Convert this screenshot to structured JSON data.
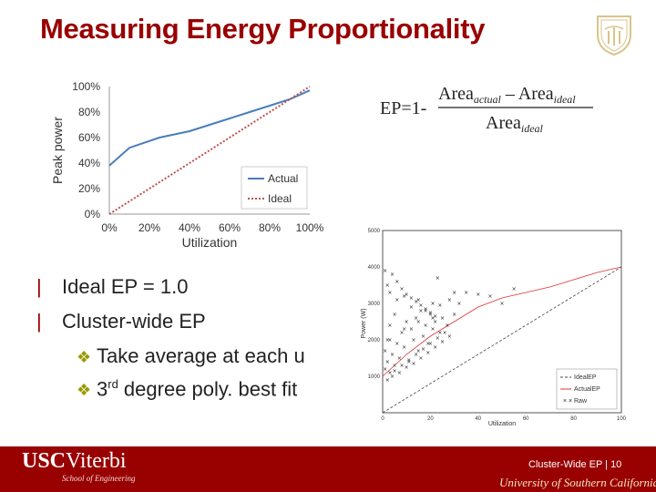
{
  "slide": {
    "title": "Measuring Energy Proportionality",
    "bullets": [
      {
        "marker": "|",
        "text": "Ideal EP = 1.0"
      },
      {
        "marker": "|",
        "text": "Cluster-wide EP"
      }
    ],
    "subbullets": [
      {
        "text": "Take average at each u"
      },
      {
        "pre": "3",
        "sup": "rd",
        "post": " degree poly. best fit"
      }
    ]
  },
  "formula": {
    "lhs": "EP=1-",
    "num_a": "Area",
    "num_a_sub": "actual",
    "minus": " – ",
    "num_b": "Area",
    "num_b_sub": "ideal",
    "den": "Area",
    "den_sub": "ideal"
  },
  "footer": {
    "logo_usc": "USC",
    "logo_viterbi": "Viterbi",
    "logo_sub": "School of Engineering",
    "slide_label": "Cluster-Wide EP | 10",
    "university": "University of Southern California"
  },
  "chart_data": [
    {
      "type": "line",
      "xlabel": "Utilization",
      "ylabel": "Peak power",
      "x_ticks": [
        "0%",
        "20%",
        "40%",
        "60%",
        "80%",
        "100%"
      ],
      "y_ticks": [
        "0%",
        "20%",
        "40%",
        "60%",
        "80%",
        "100%"
      ],
      "xlim": [
        0,
        100
      ],
      "ylim": [
        0,
        100
      ],
      "legend_position": "bottom-right",
      "series": [
        {
          "name": "Actual",
          "color": "#4a7ebb",
          "x": [
            0,
            10,
            25,
            40,
            50,
            60,
            70,
            80,
            90,
            100
          ],
          "y": [
            38,
            52,
            60,
            65,
            70,
            75,
            80,
            85,
            90,
            97
          ]
        },
        {
          "name": "Ideal",
          "color": "#c0504d",
          "style": "dotted",
          "x": [
            0,
            100
          ],
          "y": [
            0,
            100
          ]
        }
      ]
    },
    {
      "type": "scatter",
      "xlabel": "Utilization",
      "ylabel": "Power (W)",
      "x_ticks": [
        "0",
        "20",
        "40",
        "60",
        "80",
        "100"
      ],
      "y_ticks": [
        "1000",
        "2000",
        "3000",
        "4000",
        "5000"
      ],
      "xlim": [
        0,
        100
      ],
      "ylim": [
        0,
        5000
      ],
      "legend_position": "bottom-right",
      "series": [
        {
          "name": "IdealEP",
          "color": "#444444",
          "style": "dashed",
          "x": [
            0,
            100
          ],
          "y": [
            0,
            4000
          ]
        },
        {
          "name": "ActualEP",
          "color": "#dd3333",
          "x": [
            0,
            10,
            20,
            30,
            40,
            50,
            60,
            70,
            80,
            90,
            100
          ],
          "y": [
            1000,
            1600,
            2100,
            2500,
            2900,
            3150,
            3300,
            3450,
            3650,
            3850,
            4000
          ]
        },
        {
          "name": "Raw",
          "color": "#222222",
          "marker": "x",
          "x": [
            1,
            1,
            2,
            2,
            3,
            3,
            4,
            5,
            5,
            6,
            7,
            8,
            9,
            10,
            11,
            12,
            13,
            14,
            15,
            16,
            17,
            18,
            19,
            20,
            21,
            22,
            24,
            25,
            27,
            30,
            32,
            3,
            6,
            9,
            12,
            15,
            18,
            21,
            24,
            2,
            4,
            7,
            10,
            13,
            16,
            19,
            22,
            25,
            28,
            5,
            8,
            11,
            14,
            17,
            20,
            23,
            26,
            3,
            9,
            15,
            21,
            1,
            2,
            4,
            6,
            8,
            10,
            12,
            14,
            16,
            18,
            20,
            22,
            30,
            35,
            40,
            45,
            55,
            23,
            28,
            50
          ],
          "y": [
            1200,
            1700,
            1400,
            2000,
            1100,
            2400,
            1600,
            1300,
            2700,
            1900,
            1500,
            2200,
            1800,
            2500,
            1400,
            2300,
            2000,
            2600,
            1700,
            2800,
            2100,
            2400,
            1900,
            2700,
            2300,
            2500,
            2200,
            2600,
            2400,
            2700,
            3000,
            3300,
            3600,
            3200,
            2900,
            3100,
            2800,
            3000,
            2950,
            900,
            1000,
            1100,
            1250,
            1350,
            1500,
            1650,
            1800,
            1950,
            2100,
            1150,
            1300,
            1450,
            1600,
            1750,
            1900,
            2050,
            2200,
            2000,
            2300,
            2500,
            2600,
            3900,
            3500,
            3800,
            3100,
            3400,
            3250,
            3150,
            3050,
            2950,
            2850,
            2750,
            2650,
            3300,
            3300,
            3250,
            3200,
            3400,
            3700,
            3100,
            3000
          ]
        }
      ]
    }
  ]
}
